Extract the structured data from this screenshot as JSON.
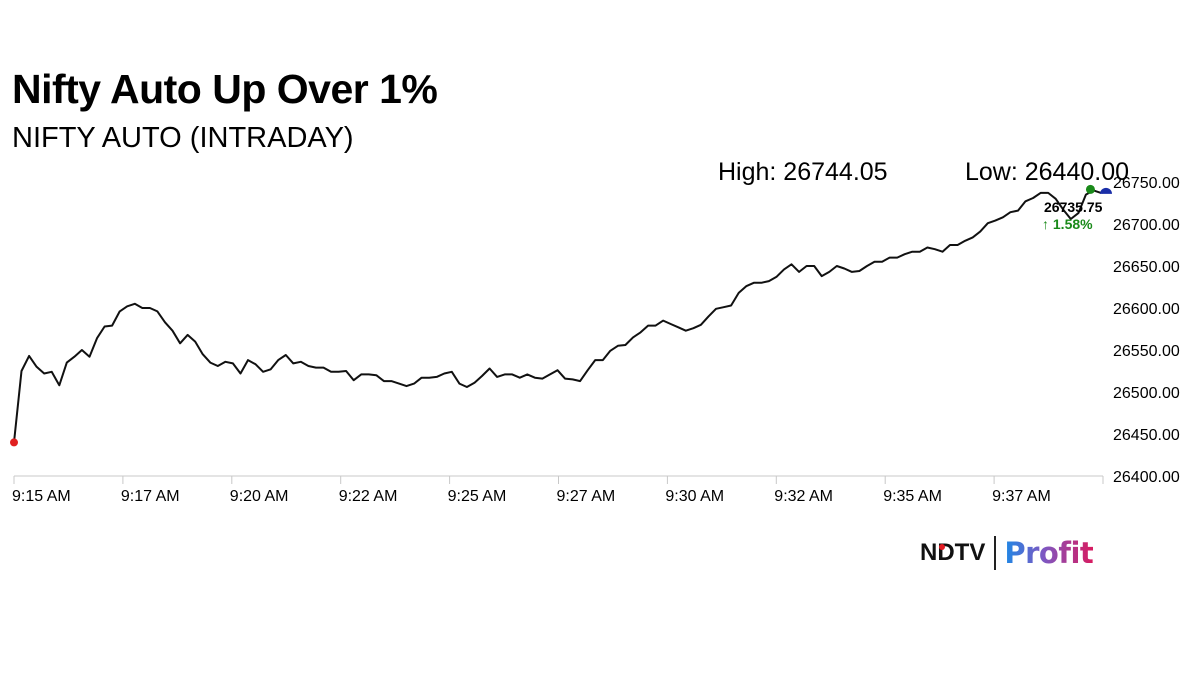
{
  "header": {
    "headline": "Nifty Auto Up Over 1%",
    "subtitle": "NIFTY AUTO (INTRADAY)"
  },
  "stats": {
    "high": "High: 26744.05",
    "low": "Low: 26440.00"
  },
  "last": {
    "value": "26735.75",
    "change": "↑ 1.58%"
  },
  "brand": {
    "ndtv": "NDTV",
    "profit": "Profit"
  },
  "colors": {
    "line": "#111111",
    "start_marker": "#e02020",
    "high_marker": "#1a8a1a",
    "last_marker": "#1a2ea8",
    "change_text": "#1a8a1a",
    "axis": "#c8c8c8"
  },
  "chart_data": {
    "type": "line",
    "title": "NIFTY AUTO (INTRADAY)",
    "xlabel": "",
    "ylabel": "",
    "x_ticks": [
      "9:15 AM",
      "9:17 AM",
      "9:20 AM",
      "9:22 AM",
      "9:25 AM",
      "9:27 AM",
      "9:30 AM",
      "9:32 AM",
      "9:35 AM",
      "9:37 AM"
    ],
    "y_ticks": [
      26400,
      26450,
      26500,
      26550,
      26600,
      26650,
      26700,
      26750
    ],
    "y_tick_labels": [
      "26400.00",
      "26450.00",
      "26500.00",
      "26550.00",
      "26600.00",
      "26650.00",
      "26700.00",
      "26750.00"
    ],
    "ylim": [
      26400,
      26750
    ],
    "grid": false,
    "legend": "none",
    "series": [
      {
        "values": [
          26440,
          26525,
          26543,
          26530,
          26522,
          26524,
          26508,
          26535,
          26542,
          26550,
          26542,
          26564,
          26578,
          26579,
          26596,
          26602,
          26605,
          26600,
          26600,
          26596,
          26583,
          26573,
          26558,
          26568,
          26560,
          26545,
          26535,
          26531,
          26536,
          26534,
          26522,
          26538,
          26533,
          26524,
          26527,
          26538,
          26544,
          26534,
          26536,
          26531,
          26529,
          26529,
          26524,
          26524,
          26525,
          26514,
          26521,
          26521,
          26520,
          26513,
          26513,
          26510,
          26507,
          26510,
          26517,
          26517,
          26518,
          26522,
          26524,
          26510,
          26506,
          26511,
          26519,
          26528,
          26518,
          26521,
          26521,
          26517,
          26521,
          26517,
          26516,
          26521,
          26526,
          26516,
          26515,
          26513,
          26526,
          26538,
          26538,
          26549,
          26555,
          26556,
          26565,
          26571,
          26579,
          26579,
          26585,
          26581,
          26577,
          26573,
          26576,
          26580,
          26590,
          26599,
          26601,
          26603,
          26618,
          26626,
          26630,
          26630,
          26632,
          26637,
          26646,
          26652,
          26643,
          26650,
          26650,
          26638,
          26643,
          26650,
          26647,
          26643,
          26644,
          26650,
          26655,
          26655,
          26660,
          26660,
          26664,
          26667,
          26667,
          26672,
          26670,
          26667,
          26675,
          26675,
          26680,
          26684,
          26691,
          26701,
          26704,
          26708,
          26714,
          26716,
          26727,
          26731,
          26737,
          26737,
          26730,
          26717,
          26706,
          26713,
          26735,
          26740,
          26737
        ]
      }
    ]
  }
}
